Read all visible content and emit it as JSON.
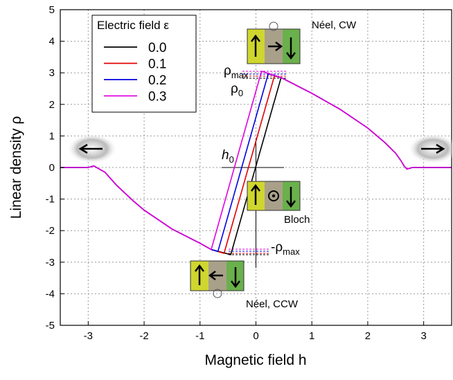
{
  "chart_data": {
    "type": "line",
    "xlabel": "Magnetic field h",
    "ylabel": "Linear density ρ",
    "legend_title": "Electric field ε",
    "legend": "upper left",
    "grid": true,
    "xlim": [
      -3.5,
      3.5
    ],
    "ylim": [
      -5,
      5
    ],
    "xticks": [
      -3,
      -2,
      -1,
      0,
      1,
      2,
      3
    ],
    "yticks": [
      -5,
      -4,
      -3,
      -2,
      -1,
      0,
      1,
      2,
      3,
      4,
      5
    ],
    "series": [
      {
        "name": "0.0",
        "color": "#000000",
        "x": [
          -3.5,
          -3.0,
          -2.9,
          -2.8,
          -2.7,
          -2.65,
          -2.5,
          -2.2,
          -2.0,
          -1.5,
          -1.0,
          -0.8,
          -0.45,
          0.45,
          1.0,
          1.5,
          2.0,
          2.3,
          2.5,
          2.6,
          2.65,
          2.7,
          2.8,
          3.5
        ],
        "values": [
          0,
          0,
          0.05,
          -0.05,
          -0.15,
          -0.25,
          -0.55,
          -1.05,
          -1.35,
          -1.95,
          -2.4,
          -2.6,
          -2.76,
          2.85,
          2.35,
          1.85,
          1.25,
          0.8,
          0.45,
          0.2,
          0.05,
          -0.05,
          0,
          0
        ]
      },
      {
        "name": "0.1",
        "color": "#e00000",
        "x": [
          -3.5,
          -3.0,
          -2.9,
          -2.8,
          -2.7,
          -2.65,
          -2.5,
          -2.2,
          -2.0,
          -1.5,
          -1.0,
          -0.8,
          -0.57,
          0.33,
          0.45,
          1.0,
          1.5,
          2.0,
          2.3,
          2.5,
          2.6,
          2.65,
          2.7,
          2.8,
          3.5
        ],
        "values": [
          0,
          0,
          0.05,
          -0.05,
          -0.15,
          -0.25,
          -0.55,
          -1.05,
          -1.35,
          -1.95,
          -2.4,
          -2.6,
          -2.72,
          2.9,
          2.85,
          2.35,
          1.85,
          1.25,
          0.8,
          0.45,
          0.2,
          0.05,
          -0.05,
          0,
          0
        ]
      },
      {
        "name": "0.2",
        "color": "#0000e0",
        "x": [
          -3.5,
          -3.0,
          -2.9,
          -2.8,
          -2.7,
          -2.65,
          -2.5,
          -2.2,
          -2.0,
          -1.5,
          -1.0,
          -0.8,
          -0.68,
          0.22,
          0.45,
          1.0,
          1.5,
          2.0,
          2.3,
          2.5,
          2.6,
          2.65,
          2.7,
          2.8,
          3.5
        ],
        "values": [
          0,
          0,
          0.05,
          -0.05,
          -0.15,
          -0.25,
          -0.55,
          -1.05,
          -1.35,
          -1.95,
          -2.4,
          -2.6,
          -2.66,
          2.97,
          2.85,
          2.35,
          1.85,
          1.25,
          0.8,
          0.45,
          0.2,
          0.05,
          -0.05,
          0,
          0
        ]
      },
      {
        "name": "0.3",
        "color": "#e000e0",
        "x": [
          -3.5,
          -3.0,
          -2.9,
          -2.8,
          -2.7,
          -2.65,
          -2.5,
          -2.2,
          -2.0,
          -1.5,
          -1.0,
          -0.8,
          0.1,
          0.45,
          1.0,
          1.5,
          2.0,
          2.3,
          2.5,
          2.6,
          2.65,
          2.7,
          2.8,
          3.5
        ],
        "values": [
          0,
          0,
          0.05,
          -0.05,
          -0.15,
          -0.25,
          -0.55,
          -1.05,
          -1.35,
          -1.95,
          -2.4,
          -2.6,
          3.05,
          2.85,
          2.35,
          1.85,
          1.25,
          0.8,
          0.45,
          0.2,
          0.05,
          -0.05,
          0,
          0
        ]
      }
    ],
    "annotations": [
      {
        "text": "Néel, CW"
      },
      {
        "text": "Bloch"
      },
      {
        "text": "Néel, CCW"
      },
      {
        "text": "ρ",
        "sub": "max"
      },
      {
        "text": "ρ",
        "sub": "0"
      },
      {
        "text": "h",
        "sub": "0"
      },
      {
        "text": "-ρ",
        "sub": "max"
      }
    ]
  }
}
